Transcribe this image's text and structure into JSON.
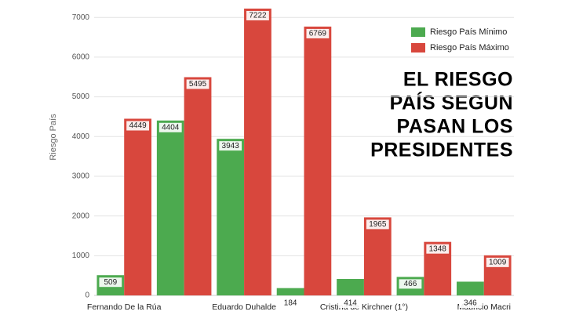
{
  "chart_data": {
    "type": "bar",
    "title": [
      "EL RIESGO",
      "PAÍS SEGUN",
      "PASAN LOS",
      "PRESIDENTES"
    ],
    "y_label": "Riesgo País",
    "categories": [
      "Fernando De la Rúa",
      null,
      "Eduardo Duhalde",
      null,
      "Cristina de Kirchner (1°)",
      null,
      "Mauricio Macri"
    ],
    "series": [
      {
        "name": "Riesgo País Mínimo",
        "color": "#4caa4f",
        "values": [
          509,
          4404,
          3943,
          184,
          414,
          466,
          346
        ]
      },
      {
        "name": "Riesgo País Máximo",
        "color": "#d8473d",
        "values": [
          4449,
          5495,
          7222,
          6769,
          1965,
          1348,
          1009
        ]
      }
    ],
    "ylim": [
      0,
      7300
    ],
    "yticks": [
      0,
      1000,
      2000,
      3000,
      4000,
      5000,
      6000,
      7000
    ],
    "grid": true,
    "legend": "top-right"
  }
}
